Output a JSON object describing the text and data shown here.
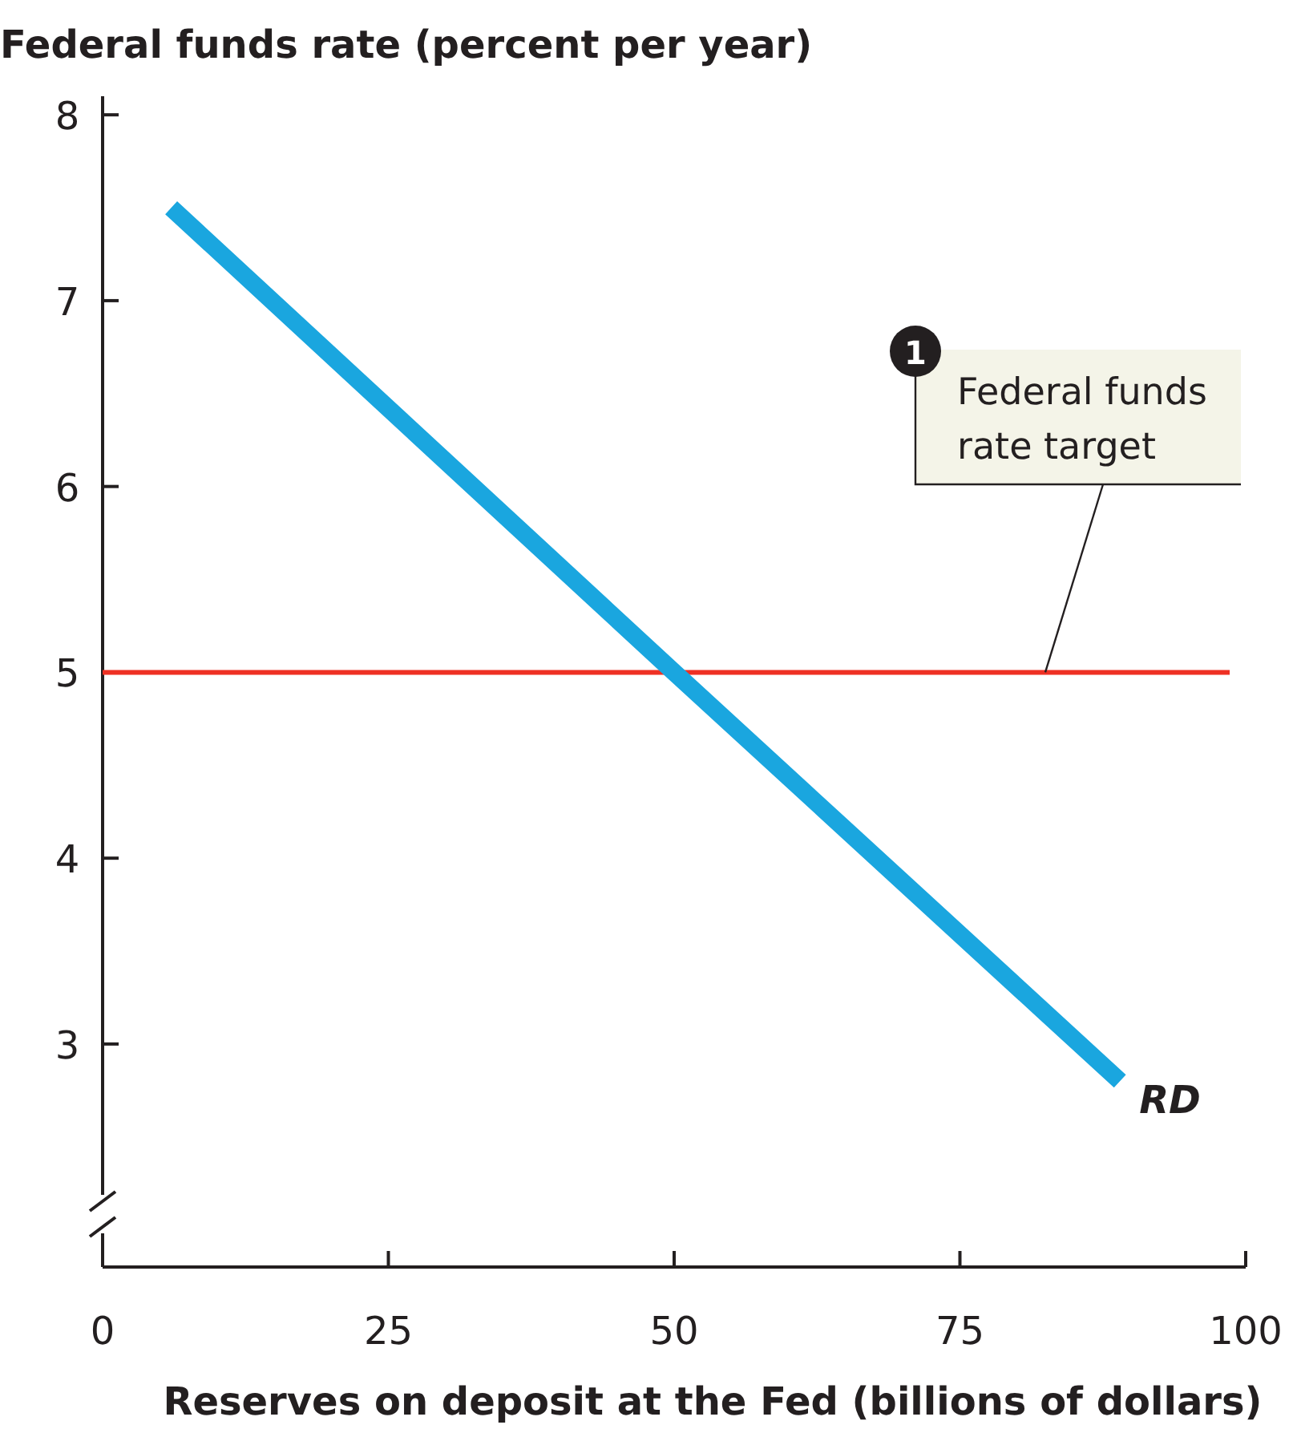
{
  "chart_data": {
    "type": "line",
    "ylabel": "Federal funds rate (percent per year)",
    "xlabel": "Reserves on deposit at the Fed (billions of dollars)",
    "x": [
      6,
      50,
      89
    ],
    "series": [
      {
        "name": "RD",
        "color": "#1aa6df",
        "values": [
          7.5,
          5,
          2.8
        ]
      }
    ],
    "xlim": [
      0,
      100
    ],
    "xticks": [
      0,
      25,
      50,
      75,
      100
    ],
    "ylim": [
      1.8,
      8.1
    ],
    "yticks": [
      3,
      4,
      5,
      6,
      7,
      8
    ],
    "ref_lines": [
      {
        "axis": "y",
        "value": 5,
        "label": "Federal funds rate target",
        "color": "#ee3124"
      }
    ],
    "annotations": [
      "1"
    ],
    "grid": false,
    "marker": "none",
    "line_style": "solid"
  }
}
